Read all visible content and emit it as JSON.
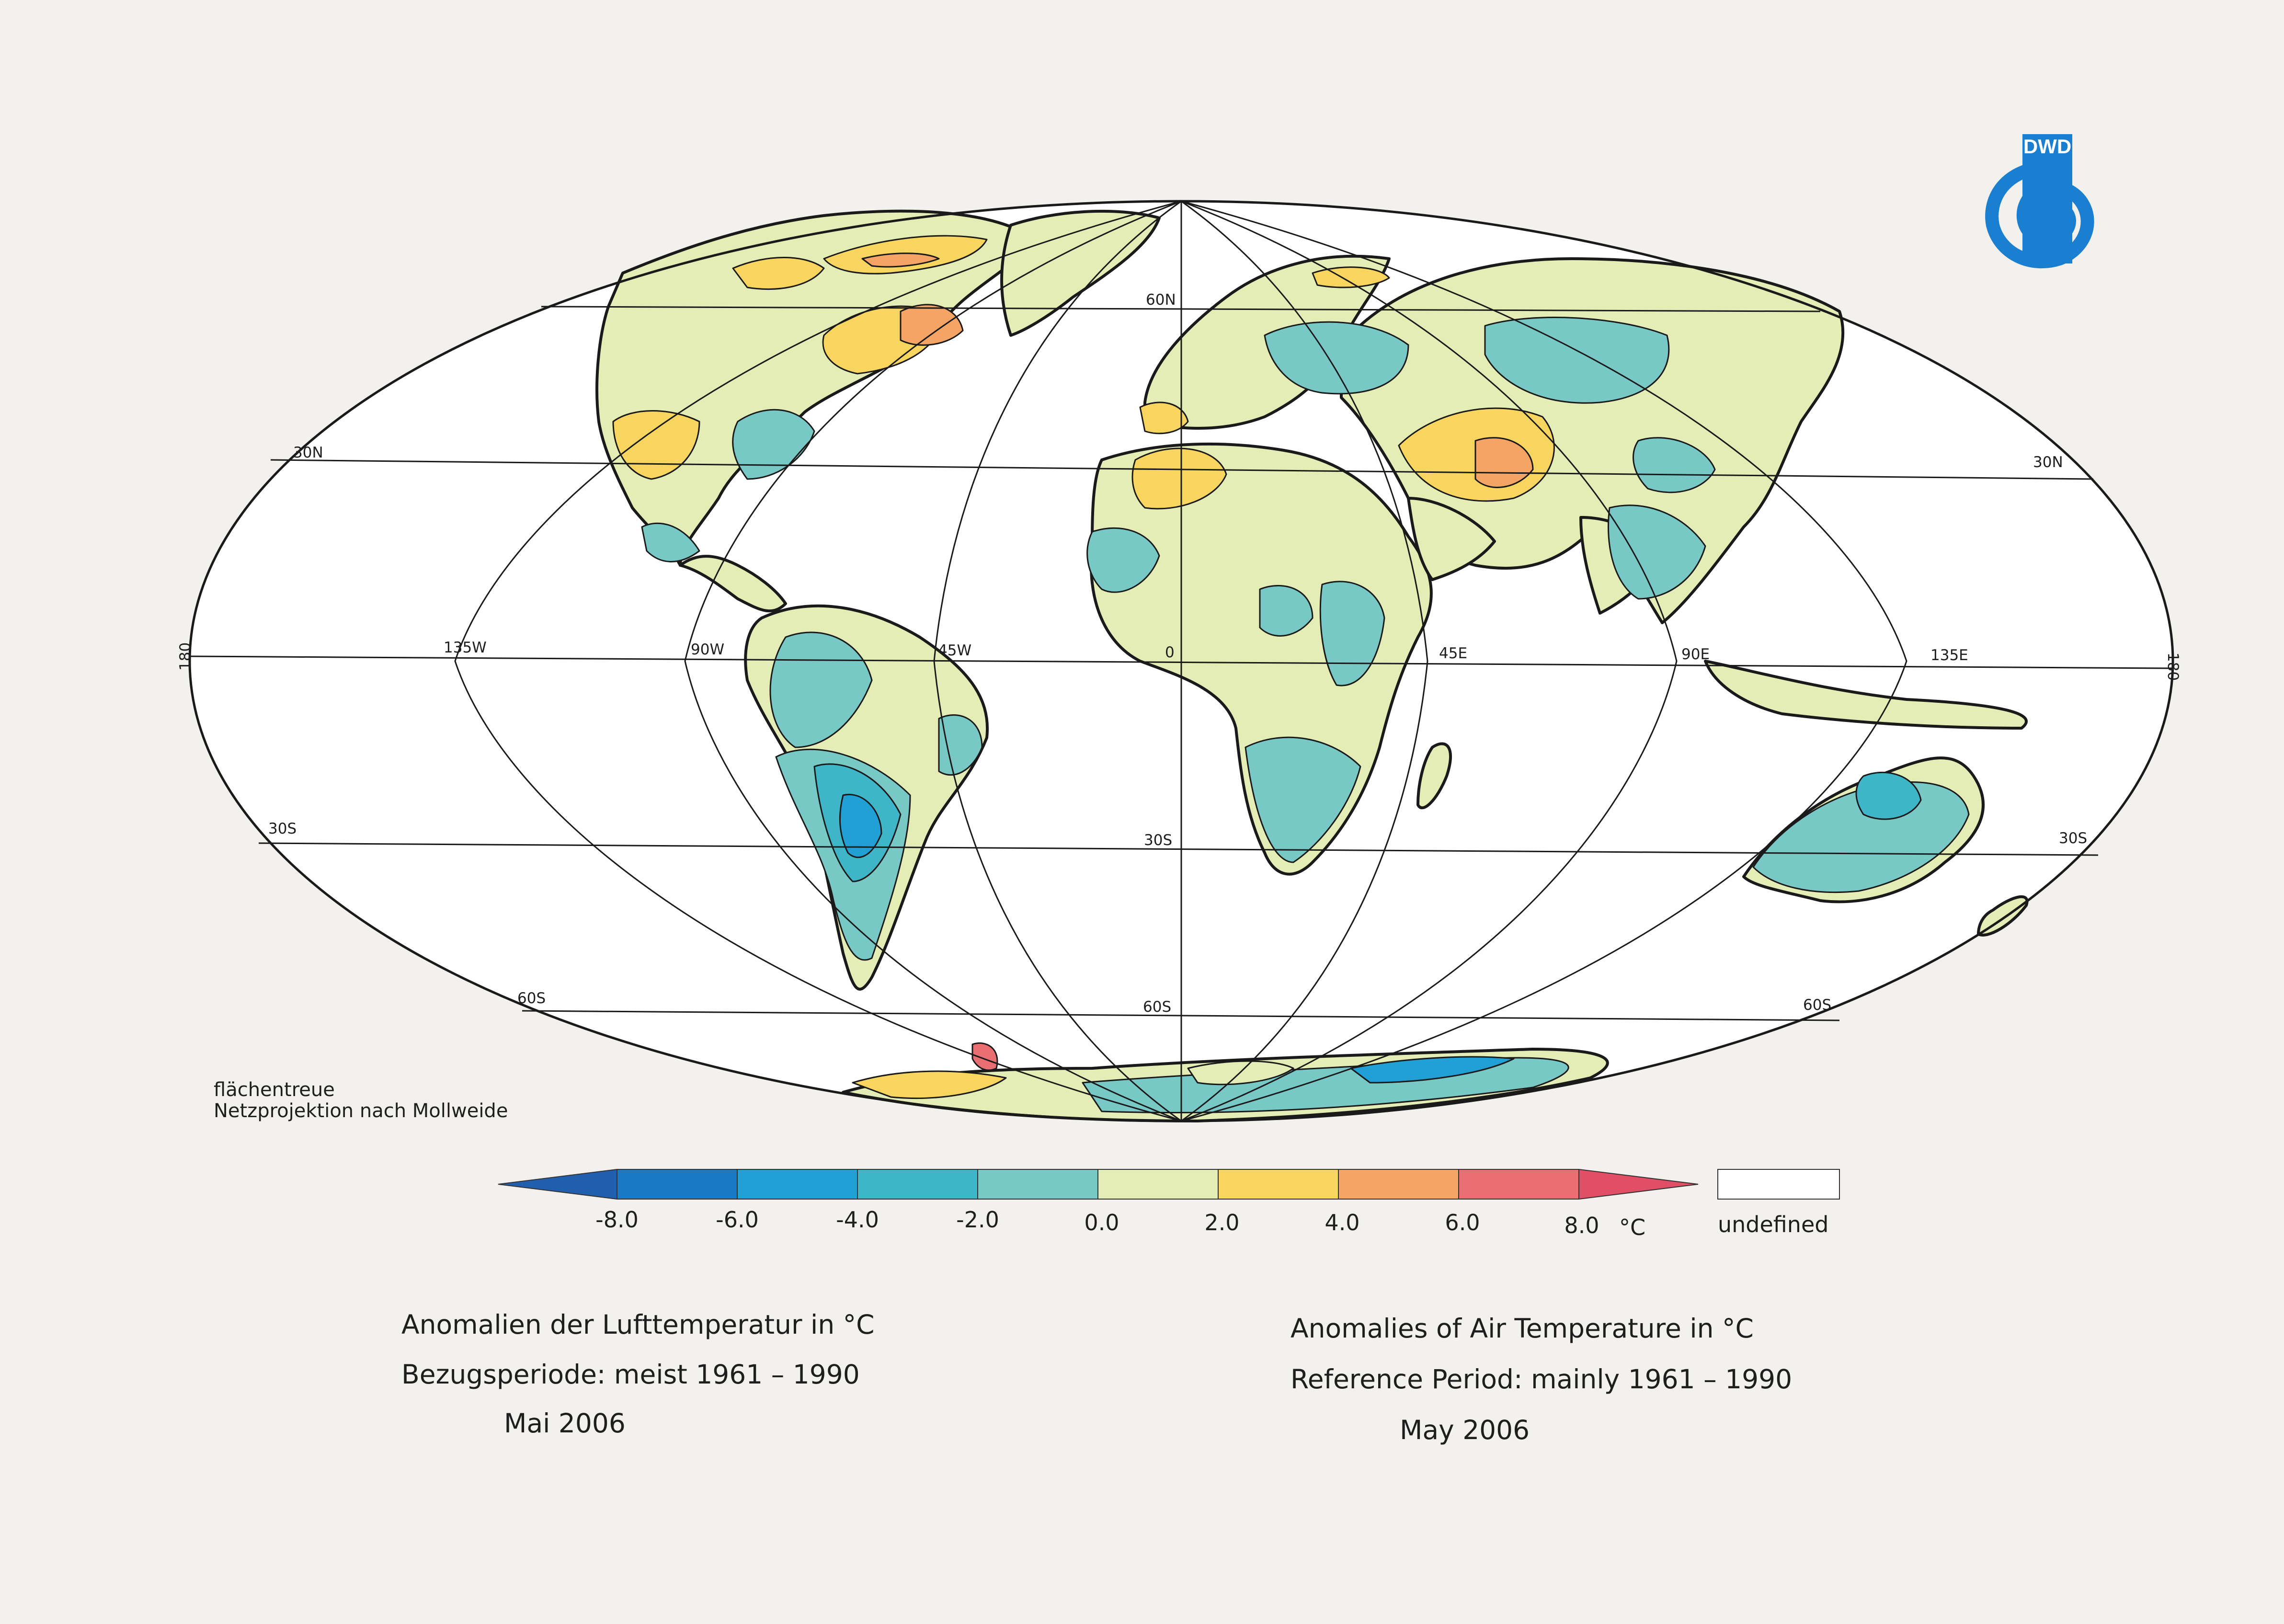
{
  "map": {
    "projection_note_line1": "flächentreue",
    "projection_note_line2": "Netzprojektion nach Mollweide",
    "lat_labels": {
      "n60": "60N",
      "n30_left": "30N",
      "n30_right": "30N",
      "s30_left": "30S",
      "s30_center": "30S",
      "s30_right": "30S",
      "s60_left": "60S",
      "s60_center": "60S",
      "s60_right": "60S"
    },
    "lon_labels": {
      "w180": "180",
      "w135": "135W",
      "w90": "90W",
      "w45": "45W",
      "zero": "0",
      "e45": "45E",
      "e90": "90E",
      "e135": "135E",
      "e180": "180"
    },
    "colors": {
      "ocean": "#ffffff",
      "outline": "#1a1a1a",
      "le_m8": "#1f5fae",
      "m8_m6": "#1b79c4",
      "m6_m4": "#21a0d6",
      "m4_m2": "#3fb5c8",
      "m2_0": "#78c8c6",
      "z_2": "#e4edb6",
      "p2_4": "#f7d55e",
      "p4_6": "#f4a565",
      "p6_8": "#e86e72",
      "ge_8": "#e04f66"
    }
  },
  "logo": {
    "text": "DWD",
    "color": "#1a7fd0"
  },
  "legend": {
    "ticks": [
      "-8.0",
      "-6.0",
      "-4.0",
      "-2.0",
      "0.0",
      "2.0",
      "4.0",
      "6.0",
      "8.0"
    ],
    "unit": "°C",
    "undefined_label": "undefined"
  },
  "caption_de": {
    "line1": "Anomalien der Lufttemperatur in °C",
    "line2": "Bezugsperiode: meist 1961 – 1990",
    "line3": "Mai 2006"
  },
  "caption_en": {
    "line1": "Anomalies of Air Temperature in °C",
    "line2": "Reference Period: mainly 1961 – 1990",
    "line3": "May 2006"
  }
}
